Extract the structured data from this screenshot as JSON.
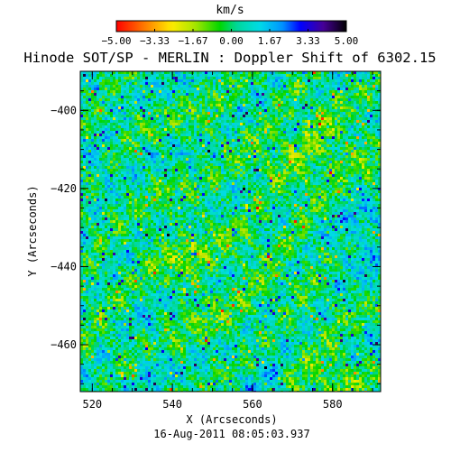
{
  "chart_data": {
    "type": "heatmap",
    "title": "Hinode SOT/SP - MERLIN : Doppler Shift of 6302.15",
    "xlabel": "X (Arcseconds)",
    "ylabel": "Y (Arcseconds)",
    "date_label": "16-Aug-2011 08:05:03.937",
    "xlim": [
      517,
      592
    ],
    "ylim": [
      -472,
      -390
    ],
    "xticks": [
      520,
      540,
      560,
      580
    ],
    "yticks": [
      -400,
      -420,
      -440,
      -460
    ],
    "colorbar": {
      "unit": "km/s",
      "range": [
        -5.0,
        5.0
      ],
      "ticks": [
        "-5.00",
        "-3.33",
        "-1.67",
        "0.00",
        "1.67",
        "3.33",
        "5.00"
      ],
      "colors": [
        "#ff0000",
        "#ff8000",
        "#ffff00",
        "#00dd00",
        "#00dddd",
        "#0000ff",
        "#000000"
      ]
    },
    "field": {
      "description_values": "mostly between -1.5 and 2.0 km/s; mean about 0.2",
      "typical_min": -3.0,
      "typical_max": 3.5
    }
  }
}
